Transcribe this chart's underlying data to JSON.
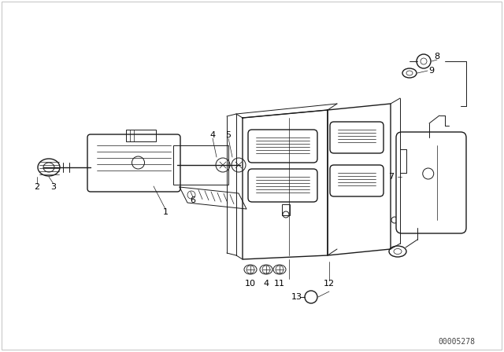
{
  "bg_color": "#ffffff",
  "line_color": "#1a1a1a",
  "text_color": "#000000",
  "fig_width": 6.4,
  "fig_height": 4.48,
  "dpi": 100,
  "watermark": "00005278",
  "border_color": "#cccccc"
}
